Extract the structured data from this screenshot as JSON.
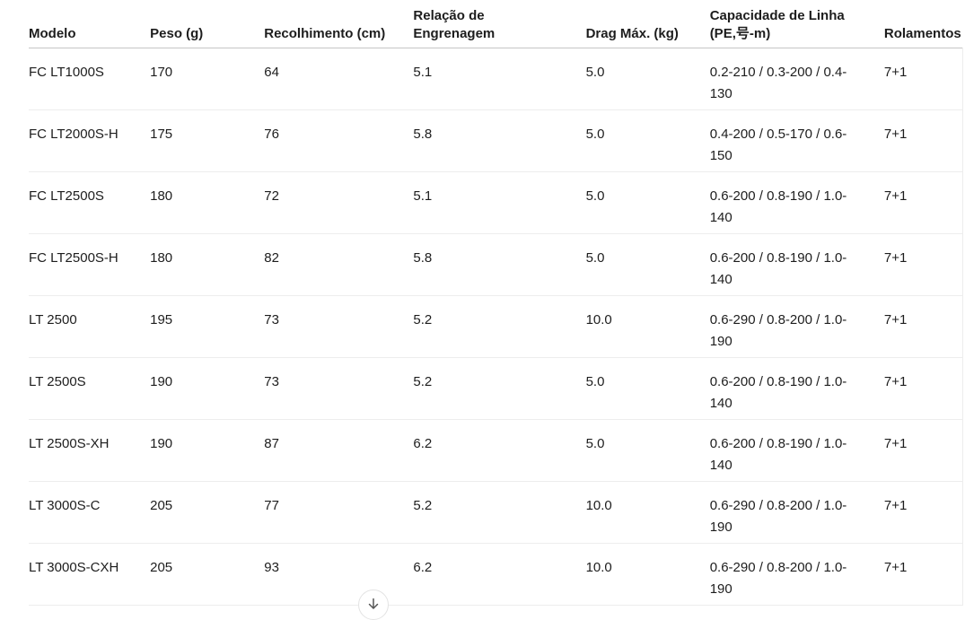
{
  "colors": {
    "background": "#ffffff",
    "text": "#1d1d1d",
    "header_border": "#c6c6c6",
    "row_border": "#ededed",
    "button_border": "#e3e3e3"
  },
  "table": {
    "columns": [
      {
        "label": "Modelo",
        "lines": [
          "Modelo"
        ]
      },
      {
        "label": "Peso (g)",
        "lines": [
          "Peso (g)"
        ]
      },
      {
        "label": "Recolhimento (cm)",
        "lines": [
          "Recolhimento (cm)"
        ]
      },
      {
        "label": "Relação de Engrenagem",
        "lines": [
          "Relação de",
          "Engrenagem"
        ]
      },
      {
        "label": "Drag Máx. (kg)",
        "lines": [
          "Drag Máx. (kg)"
        ]
      },
      {
        "label": "Capacidade de Linha (PE,号-m)",
        "lines": [
          "Capacidade de Linha",
          "(PE,号-m)"
        ]
      },
      {
        "label": "Rolamentos",
        "lines": [
          "Rolamentos"
        ]
      }
    ],
    "rows": [
      [
        "FC LT1000S",
        "170",
        "64",
        "5.1",
        "5.0",
        "0.2-210 / 0.3-200 / 0.4-130",
        "7+1"
      ],
      [
        "FC LT2000S-H",
        "175",
        "76",
        "5.8",
        "5.0",
        "0.4-200 / 0.5-170 / 0.6-150",
        "7+1"
      ],
      [
        "FC LT2500S",
        "180",
        "72",
        "5.1",
        "5.0",
        "0.6-200 / 0.8-190 / 1.0-140",
        "7+1"
      ],
      [
        "FC LT2500S-H",
        "180",
        "82",
        "5.8",
        "5.0",
        "0.6-200 / 0.8-190 / 1.0-140",
        "7+1"
      ],
      [
        "LT 2500",
        "195",
        "73",
        "5.2",
        "10.0",
        "0.6-290 / 0.8-200 / 1.0-190",
        "7+1"
      ],
      [
        "LT 2500S",
        "190",
        "73",
        "5.2",
        "5.0",
        "0.6-200 / 0.8-190 / 1.0-140",
        "7+1"
      ],
      [
        "LT 2500S-XH",
        "190",
        "87",
        "6.2",
        "5.0",
        "0.6-200 / 0.8-190 / 1.0-140",
        "7+1"
      ],
      [
        "LT 3000S-C",
        "205",
        "77",
        "5.2",
        "10.0",
        "0.6-290 / 0.8-200 / 1.0-190",
        "7+1"
      ],
      [
        "LT 3000S-CXH",
        "205",
        "93",
        "6.2",
        "10.0",
        "0.6-290 / 0.8-200 / 1.0-190",
        "7+1"
      ]
    ]
  },
  "footer": {
    "scroll_button_icon": "arrow-down-icon"
  }
}
